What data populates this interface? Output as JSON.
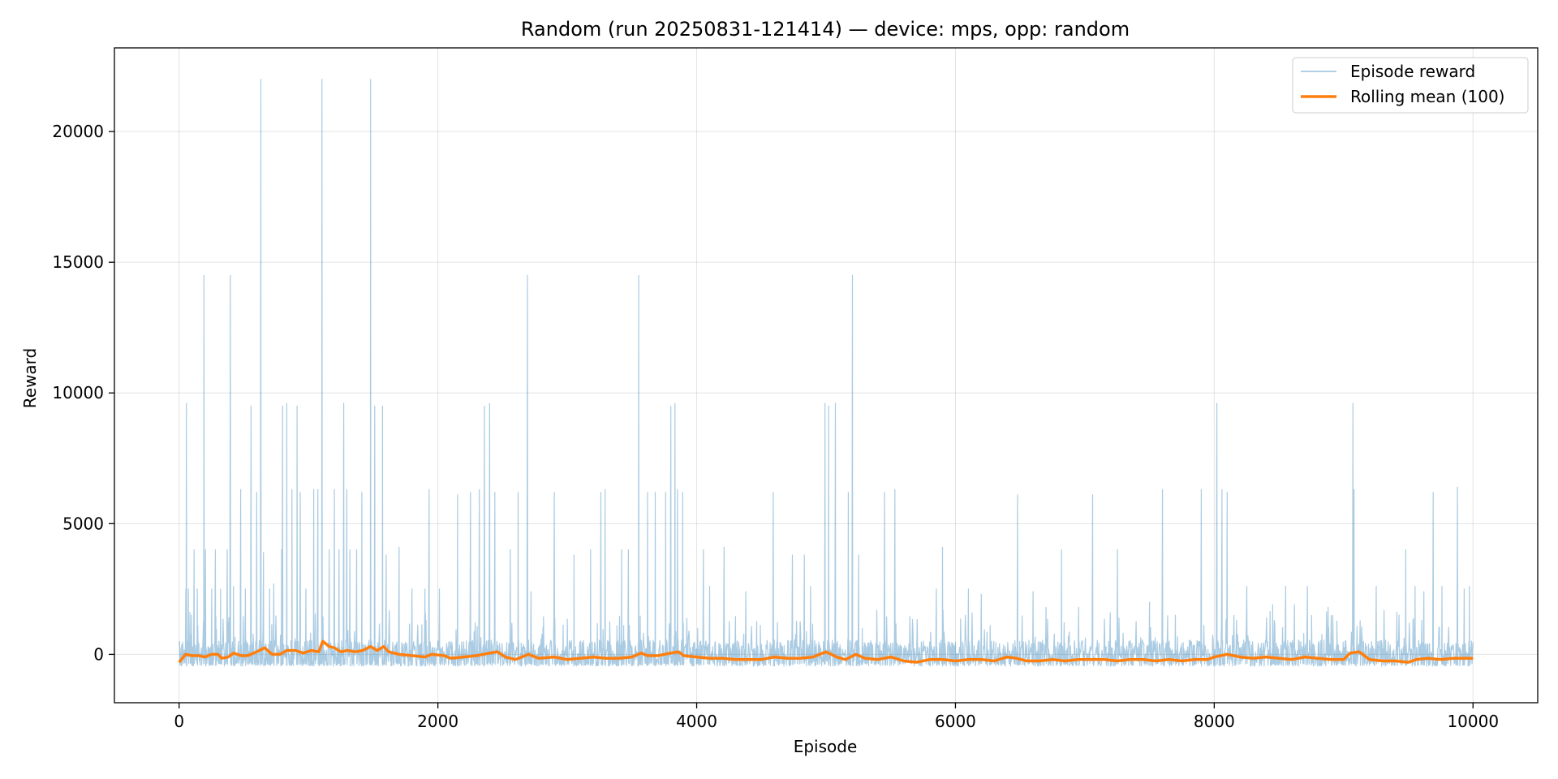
{
  "chart_data": {
    "type": "line",
    "title": "Random (run 20250831-121414) — device: mps, opp: random",
    "xlabel": "Episode",
    "ylabel": "Reward",
    "xlim": [
      -500,
      10500
    ],
    "ylim": [
      -1850,
      23200
    ],
    "x_ticks": [
      0,
      2000,
      4000,
      6000,
      8000,
      10000
    ],
    "x_tick_labels": [
      "0",
      "2000",
      "4000",
      "6000",
      "8000",
      "10000"
    ],
    "y_ticks": [
      0,
      5000,
      10000,
      15000,
      20000
    ],
    "y_tick_labels": [
      "0",
      "5000",
      "10000",
      "15000",
      "20000"
    ],
    "grid": true,
    "legend": {
      "position": "top-right",
      "entries": [
        "Episode reward",
        "Rolling mean (100)"
      ]
    },
    "colors": {
      "episode": "#1f77b4",
      "rolling": "#ff7f0e"
    },
    "episode_count": 10000,
    "baseline": {
      "low": -450,
      "high": 200
    },
    "spikes": [
      [
        50,
        2500
      ],
      [
        55,
        9600
      ],
      [
        70,
        2500
      ],
      [
        95,
        1500
      ],
      [
        115,
        4000
      ],
      [
        140,
        2500
      ],
      [
        190,
        14500
      ],
      [
        205,
        4000
      ],
      [
        250,
        2500
      ],
      [
        280,
        4000
      ],
      [
        320,
        2500
      ],
      [
        370,
        4000
      ],
      [
        395,
        14500
      ],
      [
        420,
        2600
      ],
      [
        475,
        6300
      ],
      [
        510,
        2500
      ],
      [
        555,
        9500
      ],
      [
        600,
        6200
      ],
      [
        630,
        22000
      ],
      [
        650,
        3900
      ],
      [
        700,
        2500
      ],
      [
        730,
        2700
      ],
      [
        790,
        4000
      ],
      [
        800,
        9500
      ],
      [
        830,
        9600
      ],
      [
        870,
        6300
      ],
      [
        910,
        9500
      ],
      [
        935,
        6200
      ],
      [
        980,
        2500
      ],
      [
        1040,
        6300
      ],
      [
        1070,
        6300
      ],
      [
        1105,
        22000
      ],
      [
        1160,
        4000
      ],
      [
        1200,
        6300
      ],
      [
        1235,
        4000
      ],
      [
        1270,
        9600
      ],
      [
        1295,
        6300
      ],
      [
        1320,
        4000
      ],
      [
        1370,
        4000
      ],
      [
        1410,
        6200
      ],
      [
        1480,
        22000
      ],
      [
        1510,
        9500
      ],
      [
        1570,
        9500
      ],
      [
        1600,
        3800
      ],
      [
        1700,
        4100
      ],
      [
        1800,
        2500
      ],
      [
        1900,
        2500
      ],
      [
        1930,
        6300
      ],
      [
        2010,
        2500
      ],
      [
        2150,
        6100
      ],
      [
        2250,
        6200
      ],
      [
        2320,
        6300
      ],
      [
        2360,
        9500
      ],
      [
        2400,
        9600
      ],
      [
        2440,
        6200
      ],
      [
        2560,
        4000
      ],
      [
        2620,
        6200
      ],
      [
        2690,
        14500
      ],
      [
        2720,
        2400
      ],
      [
        2900,
        6200
      ],
      [
        3050,
        3800
      ],
      [
        3180,
        4000
      ],
      [
        3260,
        6200
      ],
      [
        3290,
        6300
      ],
      [
        3420,
        4000
      ],
      [
        3470,
        4000
      ],
      [
        3550,
        14500
      ],
      [
        3620,
        6200
      ],
      [
        3680,
        6200
      ],
      [
        3760,
        6200
      ],
      [
        3800,
        9500
      ],
      [
        3830,
        9600
      ],
      [
        3850,
        6300
      ],
      [
        3890,
        6200
      ],
      [
        4050,
        4000
      ],
      [
        4100,
        2600
      ],
      [
        4210,
        4100
      ],
      [
        4380,
        2400
      ],
      [
        4590,
        6200
      ],
      [
        4740,
        3800
      ],
      [
        4830,
        3800
      ],
      [
        4880,
        2600
      ],
      [
        4990,
        9600
      ],
      [
        5020,
        9500
      ],
      [
        5070,
        9600
      ],
      [
        5170,
        6200
      ],
      [
        5205,
        14500
      ],
      [
        5250,
        3800
      ],
      [
        5450,
        6200
      ],
      [
        5530,
        6300
      ],
      [
        5850,
        2500
      ],
      [
        5900,
        4100
      ],
      [
        6100,
        2500
      ],
      [
        6200,
        2300
      ],
      [
        6480,
        6100
      ],
      [
        6600,
        2400
      ],
      [
        6700,
        1800
      ],
      [
        6820,
        4000
      ],
      [
        6950,
        1800
      ],
      [
        7060,
        6100
      ],
      [
        7250,
        4000
      ],
      [
        7500,
        2000
      ],
      [
        7600,
        6300
      ],
      [
        7700,
        1500
      ],
      [
        7900,
        6300
      ],
      [
        8020,
        9600
      ],
      [
        8060,
        6300
      ],
      [
        8100,
        6200
      ],
      [
        8250,
        2600
      ],
      [
        8450,
        1900
      ],
      [
        8550,
        2600
      ],
      [
        8620,
        1900
      ],
      [
        8720,
        2600
      ],
      [
        8880,
        1800
      ],
      [
        9070,
        9600
      ],
      [
        9080,
        6300
      ],
      [
        9250,
        2600
      ],
      [
        9480,
        4000
      ],
      [
        9550,
        2600
      ],
      [
        9620,
        2400
      ],
      [
        9690,
        6200
      ],
      [
        9760,
        2600
      ],
      [
        9880,
        6400
      ],
      [
        9930,
        2500
      ],
      [
        9970,
        2600
      ]
    ],
    "rolling_mean": [
      [
        0,
        -300
      ],
      [
        50,
        0
      ],
      [
        100,
        -50
      ],
      [
        150,
        -50
      ],
      [
        200,
        -100
      ],
      [
        250,
        0
      ],
      [
        300,
        0
      ],
      [
        330,
        -150
      ],
      [
        380,
        -100
      ],
      [
        420,
        50
      ],
      [
        480,
        -50
      ],
      [
        530,
        -50
      ],
      [
        600,
        100
      ],
      [
        660,
        250
      ],
      [
        720,
        0
      ],
      [
        780,
        0
      ],
      [
        830,
        150
      ],
      [
        900,
        150
      ],
      [
        960,
        50
      ],
      [
        1020,
        150
      ],
      [
        1080,
        100
      ],
      [
        1110,
        500
      ],
      [
        1160,
        300
      ],
      [
        1200,
        250
      ],
      [
        1250,
        100
      ],
      [
        1300,
        150
      ],
      [
        1360,
        100
      ],
      [
        1420,
        150
      ],
      [
        1480,
        300
      ],
      [
        1530,
        150
      ],
      [
        1580,
        300
      ],
      [
        1620,
        100
      ],
      [
        1700,
        0
      ],
      [
        1800,
        -50
      ],
      [
        1900,
        -100
      ],
      [
        1950,
        0
      ],
      [
        2050,
        -50
      ],
      [
        2100,
        -150
      ],
      [
        2200,
        -100
      ],
      [
        2300,
        -50
      ],
      [
        2400,
        50
      ],
      [
        2460,
        100
      ],
      [
        2520,
        -100
      ],
      [
        2600,
        -200
      ],
      [
        2700,
        0
      ],
      [
        2780,
        -150
      ],
      [
        2900,
        -100
      ],
      [
        3000,
        -200
      ],
      [
        3100,
        -150
      ],
      [
        3200,
        -100
      ],
      [
        3300,
        -150
      ],
      [
        3400,
        -150
      ],
      [
        3500,
        -100
      ],
      [
        3570,
        50
      ],
      [
        3620,
        -50
      ],
      [
        3700,
        -50
      ],
      [
        3800,
        50
      ],
      [
        3860,
        100
      ],
      [
        3900,
        -50
      ],
      [
        4000,
        -100
      ],
      [
        4100,
        -150
      ],
      [
        4200,
        -150
      ],
      [
        4300,
        -200
      ],
      [
        4400,
        -200
      ],
      [
        4500,
        -200
      ],
      [
        4600,
        -100
      ],
      [
        4700,
        -150
      ],
      [
        4800,
        -150
      ],
      [
        4900,
        -100
      ],
      [
        5000,
        100
      ],
      [
        5080,
        -100
      ],
      [
        5150,
        -200
      ],
      [
        5230,
        0
      ],
      [
        5300,
        -150
      ],
      [
        5400,
        -200
      ],
      [
        5500,
        -100
      ],
      [
        5600,
        -250
      ],
      [
        5700,
        -300
      ],
      [
        5800,
        -200
      ],
      [
        5900,
        -200
      ],
      [
        6000,
        -250
      ],
      [
        6100,
        -200
      ],
      [
        6200,
        -200
      ],
      [
        6300,
        -250
      ],
      [
        6400,
        -100
      ],
      [
        6470,
        -150
      ],
      [
        6550,
        -250
      ],
      [
        6650,
        -250
      ],
      [
        6750,
        -200
      ],
      [
        6850,
        -250
      ],
      [
        6950,
        -200
      ],
      [
        7050,
        -200
      ],
      [
        7150,
        -200
      ],
      [
        7250,
        -250
      ],
      [
        7350,
        -200
      ],
      [
        7450,
        -200
      ],
      [
        7550,
        -250
      ],
      [
        7650,
        -200
      ],
      [
        7750,
        -250
      ],
      [
        7850,
        -200
      ],
      [
        7950,
        -200
      ],
      [
        8000,
        -100
      ],
      [
        8100,
        0
      ],
      [
        8200,
        -100
      ],
      [
        8300,
        -150
      ],
      [
        8400,
        -100
      ],
      [
        8500,
        -150
      ],
      [
        8600,
        -200
      ],
      [
        8700,
        -100
      ],
      [
        8800,
        -150
      ],
      [
        8900,
        -200
      ],
      [
        9000,
        -200
      ],
      [
        9050,
        50
      ],
      [
        9120,
        100
      ],
      [
        9200,
        -200
      ],
      [
        9300,
        -250
      ],
      [
        9400,
        -250
      ],
      [
        9500,
        -300
      ],
      [
        9560,
        -200
      ],
      [
        9650,
        -150
      ],
      [
        9750,
        -200
      ],
      [
        9850,
        -150
      ],
      [
        9950,
        -150
      ],
      [
        10000,
        -150
      ]
    ]
  }
}
